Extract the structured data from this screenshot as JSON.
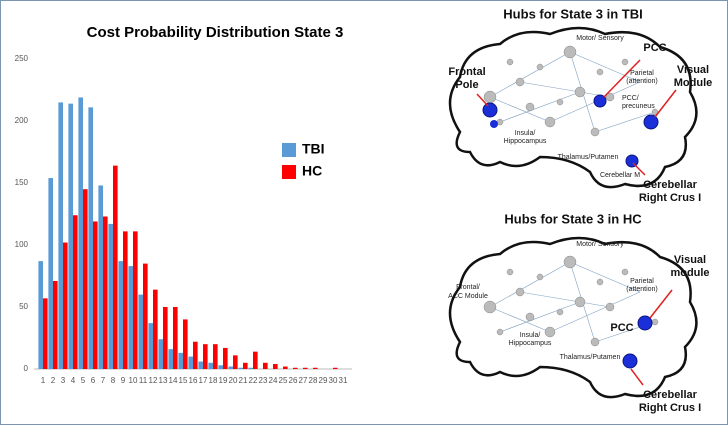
{
  "chart_data": {
    "type": "bar",
    "title": "Cost Probability Distribution State 3",
    "categories": [
      "1",
      "2",
      "3",
      "4",
      "5",
      "6",
      "7",
      "8",
      "9",
      "10",
      "11",
      "12",
      "13",
      "14",
      "15",
      "16",
      "17",
      "18",
      "19",
      "20",
      "21",
      "22",
      "23",
      "24",
      "25",
      "26",
      "27",
      "28",
      "29",
      "30",
      "31"
    ],
    "series": [
      {
        "name": "TBI",
        "color": "#5b9bd5",
        "values": [
          87,
          154,
          215,
          214,
          219,
          211,
          148,
          117,
          87,
          83,
          60,
          37,
          24,
          16,
          13,
          10,
          6,
          5,
          3,
          2,
          1,
          1,
          0,
          0,
          0,
          0,
          0,
          0,
          0,
          0,
          0
        ]
      },
      {
        "name": "HC",
        "color": "#ff0000",
        "values": [
          57,
          71,
          102,
          124,
          145,
          119,
          123,
          164,
          111,
          111,
          85,
          64,
          50,
          50,
          40,
          22,
          20,
          20,
          17,
          11,
          5,
          14,
          5,
          4,
          2,
          1,
          1,
          1,
          0,
          1,
          0
        ]
      }
    ],
    "ylim": [
      0,
      250
    ],
    "yticks": [
      0,
      50,
      100,
      150,
      200,
      250
    ],
    "grid": false,
    "legend": "right"
  },
  "diagrams": [
    {
      "title": "Hubs for State 3 in TBI",
      "labels": [
        [
          "Motor/ Sensory"
        ],
        [
          "PCC"
        ],
        [
          "Frontal",
          "Pole"
        ],
        [
          "Parietal",
          "(attention)"
        ],
        [
          "Visual",
          "Module"
        ],
        [
          "PCC/",
          "precuneus"
        ],
        [
          "Insula/",
          "Hippocampus"
        ],
        [
          "Thalamus/Putamen"
        ],
        [
          "Cerebellar M"
        ],
        [
          "Cerebellar",
          "Right Crus I"
        ]
      ]
    },
    {
      "title": "Hubs for State 3 in HC",
      "labels": [
        [
          "Motor/ Sensory"
        ],
        [
          "Parietal",
          "(attention)"
        ],
        [
          "Frontal/",
          "ACC Module"
        ],
        [
          "Visual",
          "module"
        ],
        [
          "PCC"
        ],
        [
          "Insula/",
          "Hippocampus"
        ],
        [
          "Thalamus/Putamen"
        ],
        [
          "Cerebellar",
          "Right Crus I"
        ]
      ]
    }
  ]
}
